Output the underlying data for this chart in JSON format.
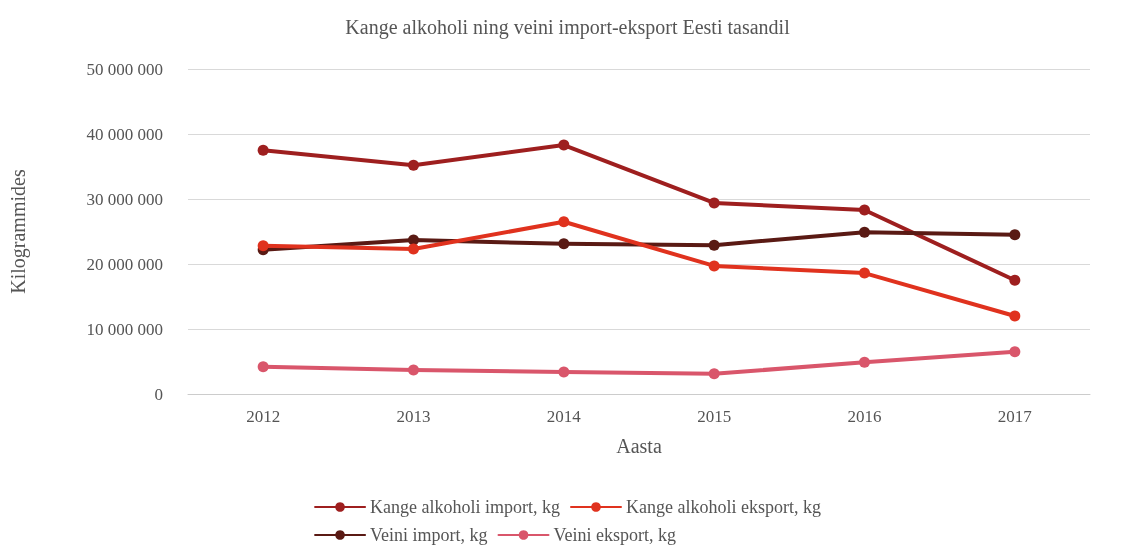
{
  "chart_data": {
    "type": "line",
    "title": "Kange alkoholi ning veini import-eksport Eesti tasandil",
    "xlabel": "Aasta",
    "ylabel": "Kilogrammides",
    "categories": [
      "2012",
      "2013",
      "2014",
      "2015",
      "2016",
      "2017"
    ],
    "series": [
      {
        "name": "Kange alkoholi import, kg",
        "color": "#9e1f1f",
        "values": [
          37500000,
          35200000,
          38300000,
          29400000,
          28300000,
          17500000
        ]
      },
      {
        "name": "Kange alkoholi eksport, kg",
        "color": "#e0321e",
        "values": [
          22800000,
          22300000,
          26500000,
          19700000,
          18600000,
          12000000
        ]
      },
      {
        "name": "Veini import, kg",
        "color": "#5a1a14",
        "values": [
          22200000,
          23700000,
          23100000,
          22900000,
          24900000,
          24500000
        ]
      },
      {
        "name": "Veini eksport, kg",
        "color": "#d9566b",
        "values": [
          4200000,
          3700000,
          3400000,
          3100000,
          4900000,
          6500000
        ]
      }
    ],
    "ylim": [
      0,
      50000000
    ],
    "yticks": [
      0,
      {
        "value": 10000000,
        "label": "10 000 000"
      },
      {
        "value": 20000000,
        "label": "20 000 000"
      },
      {
        "value": 30000000,
        "label": "30 000 000"
      },
      {
        "value": 40000000,
        "label": "40 000 000"
      },
      {
        "value": 50000000,
        "label": "50 000 000"
      }
    ],
    "grid": "y",
    "legend": "bottom",
    "marker": "circle",
    "line_style": "solid"
  }
}
